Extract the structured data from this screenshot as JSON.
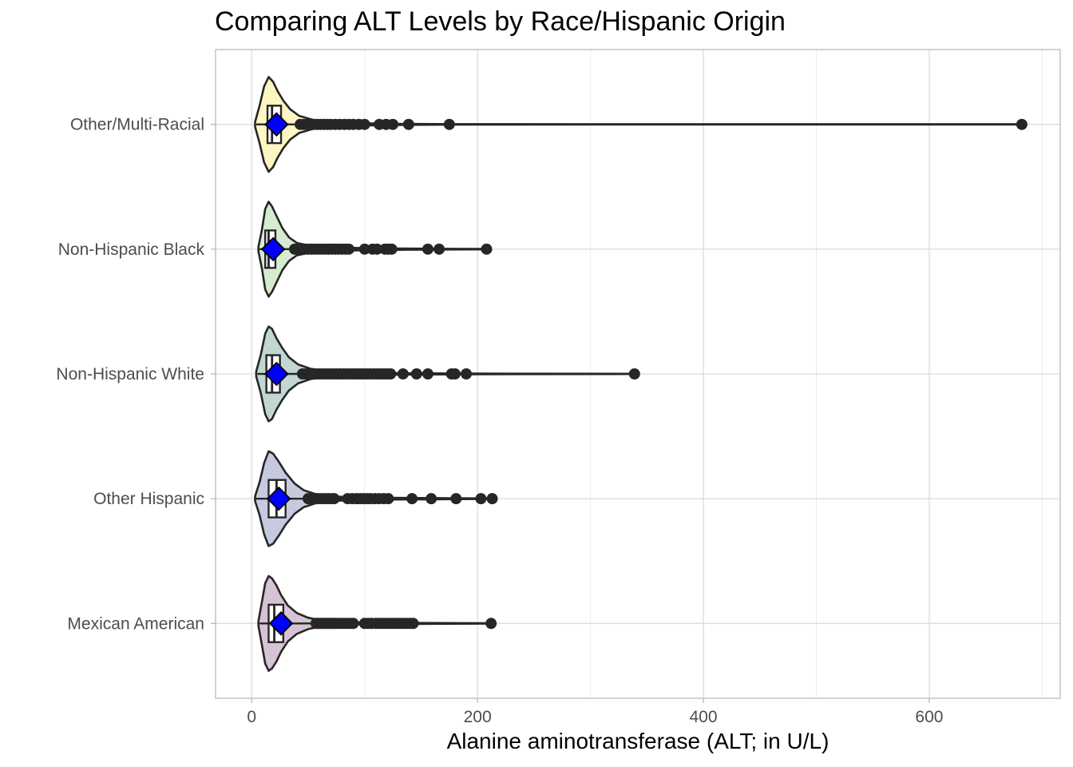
{
  "chart_data": {
    "type": "violin",
    "title": "Comparing ALT Levels by Race/Hispanic Origin",
    "xlabel": "Alanine aminotransferase (ALT; in U/L)",
    "ylabel": "",
    "xlim": [
      -32,
      716
    ],
    "x_ticks": [
      0,
      200,
      400,
      600
    ],
    "x_tick_labels": [
      "0",
      "200",
      "400",
      "600"
    ],
    "categories": [
      "Mexican American",
      "Other Hispanic",
      "Non-Hispanic White",
      "Non-Hispanic Black",
      "Other/Multi-Racial"
    ],
    "grid": true,
    "mean_marker": "blue diamond",
    "groups": [
      {
        "name": "Mexican American",
        "fill": "#d6c3d6",
        "median": 20,
        "q1": 15,
        "q3": 28,
        "whisker_low": 7,
        "whisker_high": 55,
        "mean": 26,
        "violin_profile": [
          [
            6,
            0.05
          ],
          [
            9,
            0.45
          ],
          [
            12,
            0.85
          ],
          [
            15,
            1.0
          ],
          [
            18,
            0.95
          ],
          [
            22,
            0.8
          ],
          [
            26,
            0.6
          ],
          [
            32,
            0.38
          ],
          [
            40,
            0.22
          ],
          [
            50,
            0.12
          ],
          [
            62,
            0.06
          ],
          [
            75,
            0.03
          ],
          [
            90,
            0.02
          ],
          [
            110,
            0.015
          ],
          [
            143,
            0.01
          ],
          [
            212,
            0.004
          ]
        ],
        "outliers": [
          57,
          59,
          61,
          63,
          65,
          67,
          69,
          71,
          73,
          75,
          78,
          81,
          84,
          87,
          90,
          100,
          103,
          106,
          110,
          113,
          116,
          119,
          122,
          125,
          128,
          131,
          134,
          137,
          140,
          143,
          212
        ]
      },
      {
        "name": "Other Hispanic",
        "fill": "#c7c9df",
        "median": 22,
        "q1": 15,
        "q3": 30,
        "whisker_low": 3,
        "whisker_high": 50,
        "mean": 24,
        "violin_profile": [
          [
            3,
            0.05
          ],
          [
            7,
            0.35
          ],
          [
            11,
            0.75
          ],
          [
            15,
            1.0
          ],
          [
            19,
            0.95
          ],
          [
            24,
            0.78
          ],
          [
            30,
            0.55
          ],
          [
            38,
            0.32
          ],
          [
            46,
            0.18
          ],
          [
            56,
            0.1
          ],
          [
            70,
            0.05
          ],
          [
            90,
            0.03
          ],
          [
            120,
            0.02
          ],
          [
            160,
            0.012
          ],
          [
            214,
            0.004
          ]
        ],
        "outliers": [
          50,
          53,
          56,
          59,
          62,
          65,
          68,
          71,
          73,
          85,
          89,
          93,
          96,
          99,
          102,
          105,
          109,
          113,
          117,
          121,
          142,
          159,
          181,
          203,
          213
        ]
      },
      {
        "name": "Non-Hispanic White",
        "fill": "#c2d6d4",
        "median": 18,
        "q1": 13,
        "q3": 25,
        "whisker_low": 5,
        "whisker_high": 43,
        "mean": 22,
        "violin_profile": [
          [
            4,
            0.05
          ],
          [
            8,
            0.4
          ],
          [
            12,
            0.85
          ],
          [
            15,
            1.0
          ],
          [
            18,
            0.95
          ],
          [
            22,
            0.75
          ],
          [
            27,
            0.55
          ],
          [
            33,
            0.35
          ],
          [
            41,
            0.2
          ],
          [
            52,
            0.11
          ],
          [
            66,
            0.06
          ],
          [
            85,
            0.03
          ],
          [
            110,
            0.02
          ],
          [
            150,
            0.012
          ],
          [
            200,
            0.006
          ],
          [
            339,
            0.002
          ]
        ],
        "outliers": [
          45,
          48,
          51,
          54,
          57,
          60,
          63,
          66,
          69,
          72,
          75,
          78,
          81,
          84,
          87,
          90,
          93,
          96,
          99,
          102,
          105,
          108,
          111,
          114,
          117,
          120,
          123,
          134,
          146,
          156,
          177,
          180,
          190,
          339
        ]
      },
      {
        "name": "Non-Hispanic Black",
        "fill": "#d5ecd0",
        "median": 15,
        "q1": 12,
        "q3": 21,
        "whisker_low": 7,
        "whisker_high": 35,
        "mean": 19,
        "violin_profile": [
          [
            6,
            0.05
          ],
          [
            9,
            0.4
          ],
          [
            12,
            0.85
          ],
          [
            15,
            1.0
          ],
          [
            18,
            0.9
          ],
          [
            22,
            0.7
          ],
          [
            27,
            0.45
          ],
          [
            33,
            0.25
          ],
          [
            40,
            0.13
          ],
          [
            52,
            0.07
          ],
          [
            70,
            0.04
          ],
          [
            95,
            0.025
          ],
          [
            130,
            0.015
          ],
          [
            170,
            0.008
          ],
          [
            208,
            0.004
          ]
        ],
        "outliers": [
          38,
          41,
          44,
          47,
          50,
          53,
          56,
          59,
          62,
          65,
          68,
          71,
          74,
          77,
          80,
          83,
          86,
          100,
          107,
          111,
          118,
          121,
          124,
          156,
          166,
          208
        ]
      },
      {
        "name": "Other/Multi-Racial",
        "fill": "#fdf6c3",
        "median": 18,
        "q1": 14,
        "q3": 26,
        "whisker_low": 4,
        "whisker_high": 40,
        "mean": 22,
        "violin_profile": [
          [
            3,
            0.05
          ],
          [
            7,
            0.4
          ],
          [
            11,
            0.8
          ],
          [
            15,
            1.0
          ],
          [
            19,
            0.9
          ],
          [
            23,
            0.7
          ],
          [
            28,
            0.5
          ],
          [
            34,
            0.32
          ],
          [
            42,
            0.18
          ],
          [
            55,
            0.09
          ],
          [
            70,
            0.05
          ],
          [
            95,
            0.025
          ],
          [
            130,
            0.012
          ],
          [
            180,
            0.005
          ],
          [
            300,
            0.002
          ],
          [
            682,
            0.001
          ]
        ],
        "outliers": [
          43,
          46,
          49,
          52,
          55,
          58,
          61,
          64,
          67,
          70,
          74,
          78,
          82,
          86,
          90,
          95,
          100,
          113,
          119,
          125,
          139,
          175,
          682
        ]
      }
    ]
  }
}
